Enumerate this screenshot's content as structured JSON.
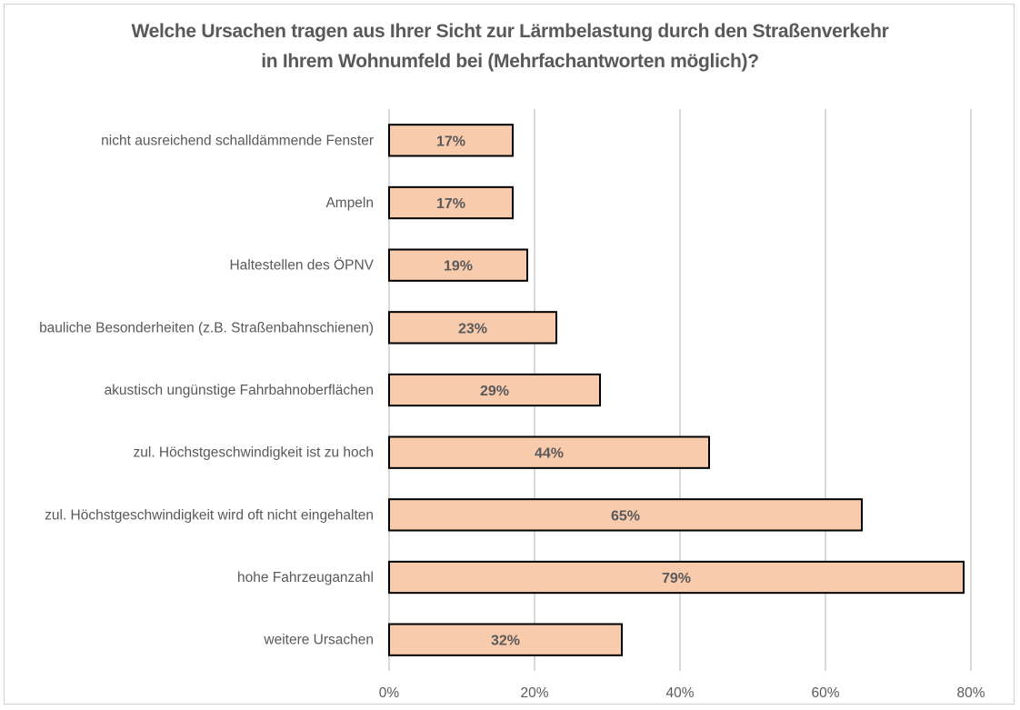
{
  "chart_data": {
    "type": "bar",
    "orientation": "horizontal",
    "title_lines": [
      "Welche Ursachen tragen aus Ihrer Sicht zur Lärmbelastung durch den Straßenverkehr",
      "in Ihrem Wohnumfeld bei (Mehrfachantworten möglich)?"
    ],
    "categories": [
      "nicht ausreichend schalldämmende Fenster",
      "Ampeln",
      "Haltestellen des ÖPNV",
      "bauliche Besonderheiten (z.B. Straßenbahnschienen)",
      "akustisch ungünstige Fahrbahnoberflächen",
      "zul. Höchstgeschwindigkeit ist zu hoch",
      "zul. Höchstgeschwindigkeit wird oft nicht eingehalten",
      "hohe Fahrzeuganzahl",
      "weitere Ursachen"
    ],
    "values": [
      17,
      17,
      19,
      23,
      29,
      44,
      65,
      79,
      32
    ],
    "data_labels": [
      "17%",
      "17%",
      "19%",
      "23%",
      "29%",
      "44%",
      "65%",
      "79%",
      "32%"
    ],
    "xlabel": "",
    "ylabel": "",
    "xlim": [
      0,
      80
    ],
    "x_ticks": [
      0,
      20,
      40,
      60,
      80
    ],
    "x_tick_labels": [
      "0%",
      "20%",
      "40%",
      "60%",
      "80%"
    ],
    "grid": true,
    "legend": "none",
    "bar_color": "#F8CBAD",
    "bar_border_color": "#000000"
  }
}
